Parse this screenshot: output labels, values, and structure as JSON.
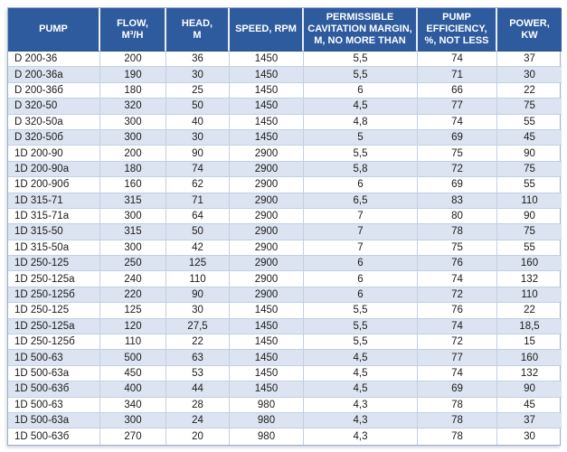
{
  "chart_data": {
    "type": "table",
    "title": "Pump specifications table",
    "columns": [
      "PUMP",
      "FLOW,\nM³/H",
      "HEAD,\nM",
      "SPEED, RPM",
      "PERMISSIBLE\nCAVITATION MARGIN,\nM, NO MORE THAN",
      "PUMP\nEFFICIENCY,\n%, NOT LESS",
      "POWER,\nKW"
    ],
    "column_ids": [
      "pump",
      "flow",
      "head",
      "speed",
      "cavitation-margin",
      "efficiency",
      "power"
    ],
    "rows": [
      [
        "D 200-36",
        "200",
        "36",
        "1450",
        "5,5",
        "74",
        "37"
      ],
      [
        "D 200-36a",
        "190",
        "30",
        "1450",
        "5,5",
        "71",
        "30"
      ],
      [
        "D 200-36б",
        "180",
        "25",
        "1450",
        "6",
        "66",
        "22"
      ],
      [
        "D 320-50",
        "320",
        "50",
        "1450",
        "4,5",
        "77",
        "75"
      ],
      [
        "D 320-50a",
        "300",
        "40",
        "1450",
        "4,8",
        "74",
        "55"
      ],
      [
        "D 320-50б",
        "300",
        "30",
        "1450",
        "5",
        "69",
        "45"
      ],
      [
        "1D 200-90",
        "200",
        "90",
        "2900",
        "5,5",
        "75",
        "90"
      ],
      [
        "1D 200-90a",
        "180",
        "74",
        "2900",
        "5,8",
        "72",
        "75"
      ],
      [
        "1D 200-90б",
        "160",
        "62",
        "2900",
        "6",
        "69",
        "55"
      ],
      [
        "1D 315-71",
        "315",
        "71",
        "2900",
        "6,5",
        "83",
        "110"
      ],
      [
        "1D 315-71a",
        "300",
        "64",
        "2900",
        "7",
        "80",
        "90"
      ],
      [
        "1D 315-50",
        "315",
        "50",
        "2900",
        "7",
        "78",
        "75"
      ],
      [
        "1D 315-50a",
        "300",
        "42",
        "2900",
        "7",
        "75",
        "55"
      ],
      [
        "1D 250-125",
        "250",
        "125",
        "2900",
        "6",
        "76",
        "160"
      ],
      [
        "1D 250-125a",
        "240",
        "110",
        "2900",
        "6",
        "74",
        "132"
      ],
      [
        "1D 250-125б",
        "220",
        "90",
        "2900",
        "6",
        "72",
        "110"
      ],
      [
        "1D 250-125",
        "125",
        "30",
        "1450",
        "5,5",
        "76",
        "22"
      ],
      [
        "1D 250-125a",
        "120",
        "27,5",
        "1450",
        "5,5",
        "74",
        "18,5"
      ],
      [
        "1D 250-125б",
        "110",
        "22",
        "1450",
        "5,5",
        "72",
        "15"
      ],
      [
        "1D 500-63",
        "500",
        "63",
        "1450",
        "4,5",
        "77",
        "160"
      ],
      [
        "1D 500-63a",
        "450",
        "53",
        "1450",
        "4,5",
        "74",
        "132"
      ],
      [
        "1D 500-63б",
        "400",
        "44",
        "1450",
        "4,5",
        "69",
        "90"
      ],
      [
        "1D 500-63",
        "340",
        "28",
        "980",
        "4,3",
        "78",
        "45"
      ],
      [
        "1D 500-63a",
        "300",
        "24",
        "980",
        "4,3",
        "78",
        "37"
      ],
      [
        "1D 500-63б",
        "270",
        "20",
        "980",
        "4,3",
        "78",
        "30"
      ]
    ]
  },
  "colors": {
    "header_bg": "#2e5b9d",
    "header_text": "#ffffff",
    "row_alt_bg": "#dce4f1",
    "row_bg": "#ffffff",
    "grid_line": "#c2cfe4",
    "body_text": "#1b1b1b",
    "outer_border": "#9db0cf"
  }
}
